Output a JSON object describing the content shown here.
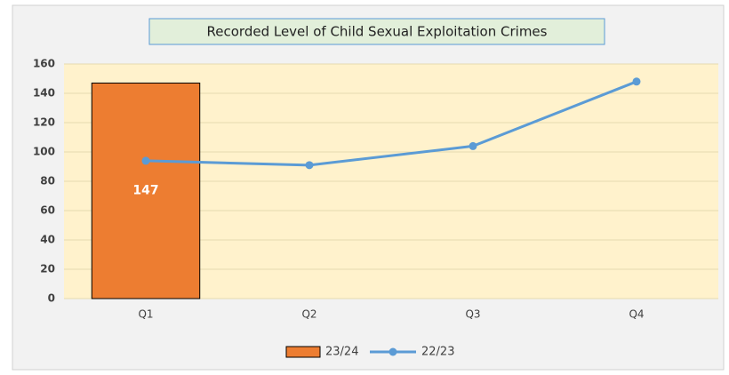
{
  "chart_data": {
    "type": "combo",
    "title": "Recorded Level of Child Sexual Exploitation Crimes",
    "categories": [
      "Q1",
      "Q2",
      "Q3",
      "Q4"
    ],
    "series": [
      {
        "name": "23/24",
        "type": "bar",
        "color": "#ed7d31",
        "values": [
          147,
          null,
          null,
          null
        ]
      },
      {
        "name": "22/23",
        "type": "line",
        "color": "#5b9bd5",
        "values": [
          94,
          91,
          104,
          148
        ]
      }
    ],
    "ylim": [
      0,
      160
    ],
    "yticks": [
      0,
      20,
      40,
      60,
      80,
      100,
      120,
      140,
      160
    ],
    "grid": true,
    "legend": "bottom"
  }
}
